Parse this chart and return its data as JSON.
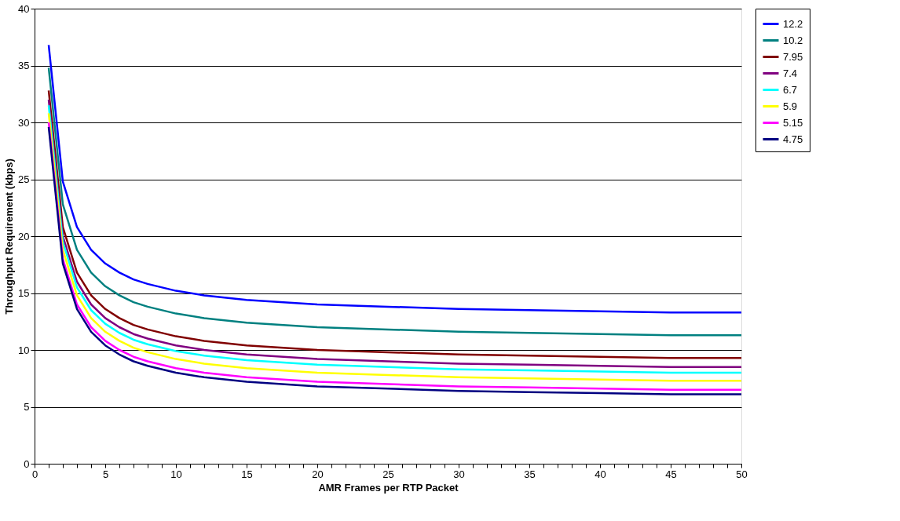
{
  "chart_data": {
    "type": "line",
    "xlabel": "AMR Frames per RTP Packet",
    "ylabel": "Throughput Requirement (kbps)",
    "x": [
      1,
      2,
      3,
      4,
      5,
      6,
      7,
      8,
      10,
      12,
      15,
      20,
      25,
      30,
      35,
      40,
      45,
      50
    ],
    "series": [
      {
        "name": "12.2",
        "color": "#0000ff",
        "values": [
          36.8,
          24.8,
          20.8,
          18.8,
          17.6,
          16.8,
          16.2,
          15.8,
          15.2,
          14.8,
          14.4,
          14.0,
          13.8,
          13.6,
          13.5,
          13.4,
          13.3,
          13.3
        ]
      },
      {
        "name": "10.2",
        "color": "#008080",
        "values": [
          34.8,
          22.8,
          18.8,
          16.8,
          15.6,
          14.8,
          14.2,
          13.8,
          13.2,
          12.8,
          12.4,
          12.0,
          11.8,
          11.6,
          11.5,
          11.4,
          11.3,
          11.3
        ]
      },
      {
        "name": "7.95",
        "color": "#800000",
        "values": [
          32.8,
          20.8,
          16.8,
          14.8,
          13.6,
          12.8,
          12.2,
          11.8,
          11.2,
          10.8,
          10.4,
          10.0,
          9.8,
          9.6,
          9.5,
          9.4,
          9.3,
          9.3
        ]
      },
      {
        "name": "7.4",
        "color": "#800080",
        "values": [
          32.0,
          20.0,
          16.0,
          14.0,
          12.8,
          12.0,
          11.4,
          11.0,
          10.4,
          10.0,
          9.6,
          9.2,
          9.0,
          8.8,
          8.7,
          8.6,
          8.5,
          8.5
        ]
      },
      {
        "name": "6.7",
        "color": "#00ffff",
        "values": [
          31.5,
          19.5,
          15.5,
          13.5,
          12.3,
          11.5,
          10.9,
          10.5,
          9.9,
          9.5,
          9.1,
          8.7,
          8.5,
          8.3,
          8.2,
          8.1,
          8.0,
          8.0
        ]
      },
      {
        "name": "5.9",
        "color": "#ffff00",
        "values": [
          30.8,
          18.8,
          14.8,
          12.8,
          11.6,
          10.8,
          10.2,
          9.8,
          9.2,
          8.8,
          8.4,
          8.0,
          7.8,
          7.6,
          7.5,
          7.4,
          7.3,
          7.3
        ]
      },
      {
        "name": "5.15",
        "color": "#ff00ff",
        "values": [
          30.0,
          18.0,
          14.0,
          12.0,
          10.8,
          10.0,
          9.4,
          9.0,
          8.4,
          8.0,
          7.6,
          7.2,
          7.0,
          6.8,
          6.7,
          6.6,
          6.5,
          6.5
        ]
      },
      {
        "name": "4.75",
        "color": "#000080",
        "values": [
          29.6,
          17.6,
          13.6,
          11.6,
          10.4,
          9.6,
          9.0,
          8.6,
          8.0,
          7.6,
          7.2,
          6.8,
          6.6,
          6.4,
          6.3,
          6.2,
          6.1,
          6.1
        ]
      }
    ],
    "xlim": [
      0,
      50
    ],
    "xticks": [
      0,
      {
        "value": 1,
        "label": null
      },
      {
        "value": 2,
        "label": null
      },
      {
        "value": 3,
        "label": null
      },
      {
        "value": 4,
        "label": null
      },
      5,
      {
        "value": 6,
        "label": null
      },
      {
        "value": 7,
        "label": null
      },
      {
        "value": 8,
        "label": null
      },
      {
        "value": 9,
        "label": null
      },
      10,
      {
        "value": 11,
        "label": null
      },
      {
        "value": 12,
        "label": null
      },
      {
        "value": 13,
        "label": null
      },
      {
        "value": 14,
        "label": null
      },
      15,
      {
        "value": 16,
        "label": null
      },
      {
        "value": 17,
        "label": null
      },
      {
        "value": 18,
        "label": null
      },
      {
        "value": 19,
        "label": null
      },
      20,
      {
        "value": 21,
        "label": null
      },
      {
        "value": 22,
        "label": null
      },
      {
        "value": 23,
        "label": null
      },
      {
        "value": 24,
        "label": null
      },
      25,
      {
        "value": 26,
        "label": null
      },
      {
        "value": 27,
        "label": null
      },
      {
        "value": 28,
        "label": null
      },
      {
        "value": 29,
        "label": null
      },
      30,
      {
        "value": 31,
        "label": null
      },
      {
        "value": 32,
        "label": null
      },
      {
        "value": 33,
        "label": null
      },
      {
        "value": 34,
        "label": null
      },
      35,
      {
        "value": 36,
        "label": null
      },
      {
        "value": 37,
        "label": null
      },
      {
        "value": 38,
        "label": null
      },
      {
        "value": 39,
        "label": null
      },
      40,
      {
        "value": 41,
        "label": null
      },
      {
        "value": 42,
        "label": null
      },
      {
        "value": 43,
        "label": null
      },
      {
        "value": 44,
        "label": null
      },
      45,
      {
        "value": 46,
        "label": null
      },
      {
        "value": 47,
        "label": null
      },
      {
        "value": 48,
        "label": null
      },
      {
        "value": 49,
        "label": null
      },
      50
    ],
    "ylim": [
      0,
      40
    ],
    "yticks": [
      0,
      5,
      10,
      15,
      20,
      25,
      30,
      35,
      40
    ],
    "grid": "y",
    "legend": "right",
    "marker": "none",
    "line_style": "solid"
  }
}
